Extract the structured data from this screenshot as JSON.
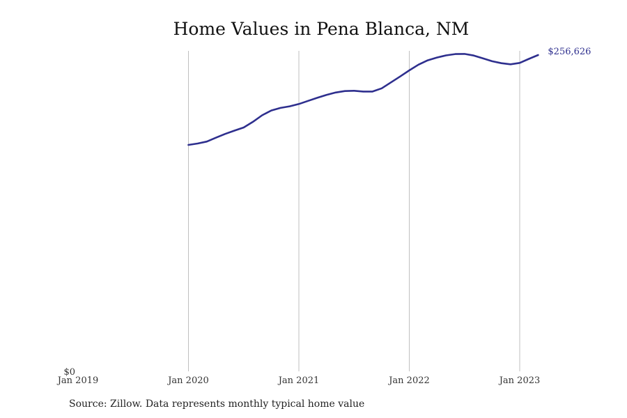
{
  "chart_data": {
    "type": "line",
    "title": "Home Values in Pena Blanca, NM",
    "xlabel": "",
    "ylabel": "",
    "x_tick_labels": [
      "Jan 2019",
      "Jan 2020",
      "Jan 2021",
      "Jan 2022",
      "Jan 2023"
    ],
    "y_tick_labels": [
      "$0"
    ],
    "ylim": [
      0,
      260000
    ],
    "grid": "vertical",
    "line_color": "#2e2f8e",
    "grid_color": "#bfbfbf",
    "end_label": "$256,626",
    "series": [
      {
        "x": [
          "2020-01",
          "2020-02",
          "2020-03",
          "2020-04",
          "2020-05",
          "2020-06",
          "2020-07",
          "2020-08",
          "2020-09",
          "2020-10",
          "2020-11",
          "2020-12",
          "2021-01",
          "2021-02",
          "2021-03",
          "2021-04",
          "2021-05",
          "2021-06",
          "2021-07",
          "2021-08",
          "2021-09",
          "2021-10",
          "2021-11",
          "2021-12",
          "2022-01",
          "2022-02",
          "2022-03",
          "2022-04",
          "2022-05",
          "2022-06",
          "2022-07",
          "2022-08",
          "2022-09",
          "2022-10",
          "2022-11",
          "2022-12",
          "2023-01",
          "2023-02",
          "2023-03"
        ],
        "y": [
          183700,
          184800,
          186400,
          189600,
          192600,
          195300,
          197800,
          202400,
          207700,
          211600,
          213700,
          215000,
          216900,
          219400,
          221900,
          224300,
          226200,
          227400,
          227600,
          227000,
          227000,
          229600,
          234400,
          239200,
          244200,
          248800,
          252300,
          254600,
          256300,
          257400,
          257500,
          256200,
          253900,
          251600,
          250000,
          249100,
          250200,
          253500,
          256626
        ]
      }
    ]
  },
  "source_text": "Source: Zillow. Data represents monthly typical home value"
}
